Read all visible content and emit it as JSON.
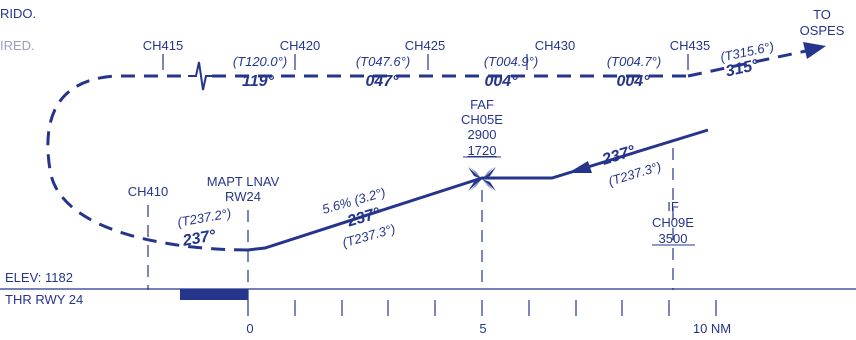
{
  "colors": {
    "primary": "#26358c",
    "faded": "#9a9fbe"
  },
  "edge_text": {
    "top": "RIDO.",
    "second": "IRED."
  },
  "missed_approach": {
    "to_label": "TO",
    "destination": "OSPES",
    "fixes": [
      {
        "id": "ch415",
        "label": "CH415"
      },
      {
        "id": "ch420",
        "label": "CH420"
      },
      {
        "id": "ch425",
        "label": "CH425"
      },
      {
        "id": "ch430",
        "label": "CH430"
      },
      {
        "id": "ch435",
        "label": "CH435"
      }
    ],
    "legs": [
      {
        "id": "leg1",
        "true_course": "(T120.0°)",
        "course": "119°"
      },
      {
        "id": "leg2",
        "true_course": "(T047.6°)",
        "course": "047°"
      },
      {
        "id": "leg3",
        "true_course": "(T004.9°)",
        "course": "004°"
      },
      {
        "id": "leg4",
        "true_course": "(T004.7°)",
        "course": "004°"
      },
      {
        "id": "leg5",
        "true_course": "(T315.6°)",
        "course": "315°"
      }
    ]
  },
  "approach": {
    "ch410": {
      "label": "CH410"
    },
    "initial_leg": {
      "true_course": "(T237.2°)",
      "course": "237°"
    },
    "mapt": {
      "line1": "MAPT LNAV",
      "line2": "RW24"
    },
    "final_leg": {
      "gradient": "5.6% (3.2°)",
      "course": "237°",
      "true_course": "(T237.3°)"
    },
    "faf": {
      "label": "FAF",
      "fix": "CH05E",
      "altitude": "2900",
      "height": "1720"
    },
    "intermediate_leg": {
      "course": "237°",
      "true_course": "(T237.3°)"
    },
    "if_fix": {
      "label": "IF",
      "fix": "CH09E",
      "altitude": "3500"
    }
  },
  "runway": {
    "elevation": "ELEV: 1182",
    "threshold": "THR RWY 24"
  },
  "distance_scale": {
    "tick_0": "0",
    "tick_5": "5",
    "tick_10": "10 NM"
  }
}
